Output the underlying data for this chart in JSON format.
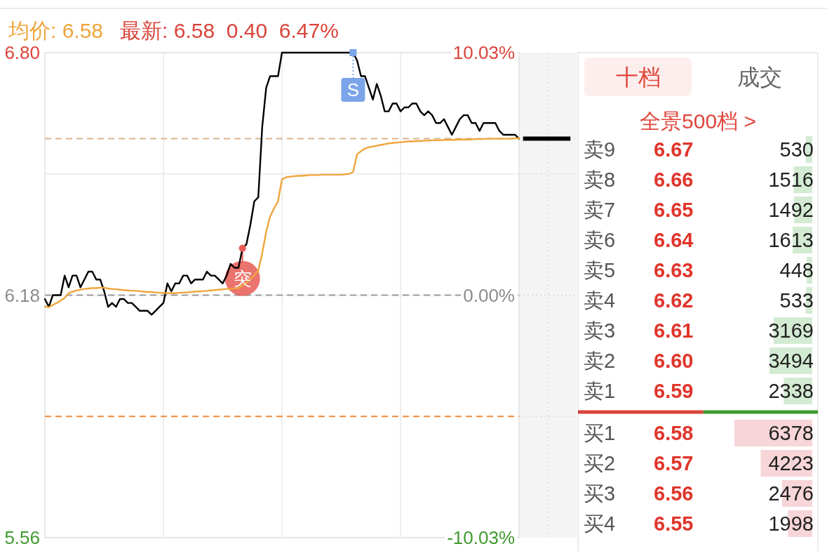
{
  "chart_data": [
    {
      "type": "line",
      "title": "均价: 6.58",
      "subtitle": "最新: 6.58  0.40  6.47%",
      "categories": [
        null,
        null,
        null,
        null,
        null,
        null,
        null,
        null,
        null,
        null,
        null,
        null,
        null,
        null,
        null,
        null,
        null,
        null,
        null,
        null,
        null,
        null,
        null,
        null,
        null,
        null,
        null,
        null,
        null,
        null,
        null,
        null,
        null,
        null,
        null,
        null,
        null,
        null,
        null,
        null,
        null,
        null,
        null,
        null,
        null,
        null,
        null,
        null,
        null,
        null,
        null,
        null,
        null,
        null,
        null,
        null,
        null,
        null,
        null,
        null,
        null,
        null,
        null,
        null,
        null,
        null,
        null,
        null,
        null,
        null,
        null,
        null,
        null,
        null,
        null,
        null,
        null,
        null,
        null,
        null,
        null,
        null,
        null,
        null,
        null,
        null,
        null,
        null,
        null,
        null,
        null,
        null,
        null,
        null,
        null,
        null,
        null,
        null,
        null,
        null,
        null,
        null,
        null,
        null,
        null,
        null,
        null,
        null,
        null,
        null,
        null,
        null,
        null,
        null,
        null,
        null,
        null,
        null,
        null,
        null,
        null,
        null,
        null,
        null,
        null,
        null,
        null,
        null,
        null,
        null,
        null,
        null,
        null,
        null
      ],
      "series": [
        {
          "color": "#000000",
          "values": [
            6.17,
            6.15,
            6.18,
            6.18,
            6.18,
            6.23,
            6.2,
            6.23,
            6.23,
            6.2,
            6.22,
            6.24,
            6.24,
            6.22,
            6.22,
            6.19,
            6.15,
            6.16,
            6.15,
            6.17,
            6.17,
            6.16,
            6.16,
            6.15,
            6.14,
            6.14,
            6.14,
            6.13,
            6.14,
            6.15,
            6.16,
            6.21,
            6.19,
            6.21,
            6.21,
            6.23,
            6.23,
            6.21,
            6.22,
            6.22,
            6.22,
            6.24,
            6.23,
            6.23,
            6.22,
            6.21,
            6.23,
            6.26,
            6.25,
            6.25,
            6.3,
            6.31,
            6.36,
            6.42,
            6.43,
            6.61,
            6.71,
            6.74,
            6.74,
            6.74,
            6.8,
            6.8,
            6.8,
            6.8,
            6.8,
            6.8,
            6.8,
            6.8,
            6.8,
            6.8,
            6.8,
            6.8,
            6.8,
            6.8,
            6.8,
            6.8,
            6.8,
            6.8,
            6.8,
            6.78,
            6.74,
            6.74,
            6.71,
            6.68,
            6.72,
            6.69,
            6.65,
            6.65,
            6.67,
            6.67,
            6.65,
            6.66,
            6.66,
            6.67,
            6.67,
            6.65,
            6.64,
            6.65,
            6.64,
            6.62,
            6.62,
            6.63,
            6.61,
            6.59,
            6.61,
            6.63,
            6.64,
            6.64,
            6.62,
            6.62,
            6.6,
            6.62,
            6.62,
            6.62,
            6.62,
            6.6,
            6.59,
            6.59,
            6.59,
            6.59,
            6.58,
            null,
            null,
            null,
            null,
            null,
            null,
            null,
            null,
            null,
            null,
            null,
            null,
            null
          ]
        },
        {
          "color": "#efa53c",
          "values": [
            6.151,
            6.149,
            6.155,
            6.16,
            6.166,
            6.173,
            6.185,
            6.189,
            6.192,
            6.194,
            6.196,
            6.197,
            6.198,
            6.198,
            6.199,
            6.199,
            6.197,
            6.196,
            6.195,
            6.194,
            6.193,
            6.192,
            6.191,
            6.191,
            6.19,
            6.189,
            6.188,
            6.188,
            6.187,
            6.186,
            6.186,
            6.185,
            6.185,
            6.185,
            6.186,
            6.187,
            6.187,
            6.188,
            6.189,
            6.19,
            6.19,
            6.191,
            6.192,
            6.193,
            6.194,
            6.195,
            6.196,
            6.196,
            6.197,
            6.198,
            6.205,
            6.211,
            6.221,
            6.231,
            6.243,
            6.287,
            6.342,
            6.381,
            6.402,
            6.42,
            6.476,
            6.481,
            6.483,
            6.484,
            6.485,
            6.485,
            6.486,
            6.487,
            6.487,
            6.487,
            6.488,
            6.488,
            6.488,
            6.488,
            6.488,
            6.488,
            6.489,
            6.49,
            6.495,
            6.54,
            6.548,
            6.555,
            6.558,
            6.56,
            6.562,
            6.564,
            6.566,
            6.568,
            6.569,
            6.57,
            6.571,
            6.572,
            6.573,
            6.573,
            6.574,
            6.574,
            6.575,
            6.575,
            6.576,
            6.576,
            6.576,
            6.577,
            6.577,
            6.577,
            6.577,
            6.578,
            6.578,
            6.578,
            6.578,
            6.579,
            6.579,
            6.579,
            6.58,
            6.58,
            6.58,
            6.58,
            6.58,
            6.58,
            6.58,
            6.581,
            6.581,
            null,
            null,
            null,
            null,
            null,
            null,
            null,
            null,
            null,
            null,
            null,
            null,
            null
          ]
        },
        {
          "color": "#000000",
          "values": [
            null,
            null,
            null,
            null,
            null,
            null,
            null,
            null,
            null,
            null,
            null,
            null,
            null,
            null,
            null,
            null,
            null,
            null,
            null,
            null,
            null,
            null,
            null,
            null,
            null,
            null,
            null,
            null,
            null,
            null,
            null,
            null,
            null,
            null,
            null,
            null,
            null,
            null,
            null,
            null,
            null,
            null,
            null,
            null,
            null,
            null,
            null,
            null,
            null,
            null,
            null,
            null,
            null,
            null,
            null,
            null,
            null,
            null,
            null,
            null,
            null,
            null,
            null,
            null,
            null,
            null,
            null,
            null,
            null,
            null,
            null,
            null,
            null,
            null,
            null,
            null,
            null,
            null,
            null,
            null,
            null,
            null,
            null,
            null,
            null,
            null,
            null,
            null,
            null,
            null,
            null,
            null,
            null,
            null,
            null,
            null,
            null,
            null,
            null,
            null,
            null,
            null,
            null,
            null,
            null,
            null,
            null,
            null,
            null,
            null,
            null,
            null,
            null,
            null,
            null,
            null,
            null,
            null,
            null,
            null,
            null,
            6.58,
            6.58,
            6.58,
            6.58,
            6.58,
            6.58,
            6.58,
            6.58,
            6.58,
            6.58,
            6.58,
            6.58,
            6.58
          ]
        },
        {
          "type": "scatter",
          "marker": "circle",
          "color": "#e85a54",
          "values": [
            null,
            null,
            null,
            null,
            null,
            null,
            null,
            null,
            null,
            null,
            null,
            null,
            null,
            null,
            null,
            null,
            null,
            null,
            null,
            null,
            null,
            null,
            null,
            null,
            null,
            null,
            null,
            null,
            null,
            null,
            null,
            null,
            null,
            null,
            null,
            null,
            null,
            null,
            null,
            null,
            null,
            null,
            null,
            null,
            null,
            null,
            null,
            null,
            null,
            null,
            6.3,
            null,
            null,
            null,
            null,
            null,
            null,
            null,
            null,
            null,
            null,
            null,
            null,
            null,
            null,
            null,
            null,
            null,
            null,
            null,
            null,
            null,
            null,
            null,
            null,
            null,
            null,
            null,
            null,
            null,
            null,
            null,
            null,
            null,
            null,
            null,
            null,
            null,
            null,
            null,
            null,
            null,
            null,
            null,
            null,
            null,
            null,
            null,
            null,
            null,
            null,
            null,
            null,
            null,
            null,
            null,
            null,
            null,
            null,
            null,
            null,
            null,
            null,
            null,
            null,
            null,
            null,
            null,
            null,
            null,
            null,
            null,
            null,
            null,
            null,
            null,
            null,
            null,
            null,
            null,
            null,
            null,
            null,
            null
          ],
          "value_labels": [
            null,
            null,
            null,
            null,
            null,
            null,
            null,
            null,
            null,
            null,
            null,
            null,
            null,
            null,
            null,
            null,
            null,
            null,
            null,
            null,
            null,
            null,
            null,
            null,
            null,
            null,
            null,
            null,
            null,
            null,
            null,
            null,
            null,
            null,
            null,
            null,
            null,
            null,
            null,
            null,
            null,
            null,
            null,
            null,
            null,
            null,
            null,
            null,
            null,
            null,
            "突",
            null,
            null,
            null,
            null,
            null,
            null,
            null,
            null,
            null,
            null,
            null,
            null,
            null,
            null,
            null,
            null,
            null,
            null,
            null,
            null,
            null,
            null,
            null,
            null,
            null,
            null,
            null,
            null,
            null,
            null,
            null,
            null,
            null,
            null,
            null,
            null,
            null,
            null,
            null,
            null,
            null,
            null,
            null,
            null,
            null,
            null,
            null,
            null,
            null,
            null,
            null,
            null,
            null,
            null,
            null,
            null,
            null,
            null,
            null,
            null,
            null,
            null,
            null,
            null,
            null,
            null,
            null,
            null,
            null,
            null,
            null,
            null,
            null,
            null,
            null,
            null,
            null,
            null,
            null,
            null,
            null,
            null,
            null
          ]
        },
        {
          "type": "scatter",
          "marker": "square",
          "color": "#7ba5e8",
          "values": [
            null,
            null,
            null,
            null,
            null,
            null,
            null,
            null,
            null,
            null,
            null,
            null,
            null,
            null,
            null,
            null,
            null,
            null,
            null,
            null,
            null,
            null,
            null,
            null,
            null,
            null,
            null,
            null,
            null,
            null,
            null,
            null,
            null,
            null,
            null,
            null,
            null,
            null,
            null,
            null,
            null,
            null,
            null,
            null,
            null,
            null,
            null,
            null,
            null,
            null,
            null,
            null,
            null,
            null,
            null,
            null,
            null,
            null,
            null,
            null,
            null,
            null,
            null,
            null,
            null,
            null,
            null,
            null,
            null,
            null,
            null,
            null,
            null,
            null,
            null,
            null,
            null,
            null,
            6.8,
            null,
            null,
            null,
            null,
            null,
            null,
            null,
            null,
            null,
            null,
            null,
            null,
            null,
            null,
            null,
            null,
            null,
            null,
            null,
            null,
            null,
            null,
            null,
            null,
            null,
            null,
            null,
            null,
            null,
            null,
            null,
            null,
            null,
            null,
            null,
            null,
            null,
            null,
            null,
            null,
            null,
            null,
            null,
            null,
            null,
            null,
            null,
            null,
            null,
            null,
            null,
            null,
            null,
            null,
            null
          ],
          "value_labels": [
            null,
            null,
            null,
            null,
            null,
            null,
            null,
            null,
            null,
            null,
            null,
            null,
            null,
            null,
            null,
            null,
            null,
            null,
            null,
            null,
            null,
            null,
            null,
            null,
            null,
            null,
            null,
            null,
            null,
            null,
            null,
            null,
            null,
            null,
            null,
            null,
            null,
            null,
            null,
            null,
            null,
            null,
            null,
            null,
            null,
            null,
            null,
            null,
            null,
            null,
            null,
            null,
            null,
            null,
            null,
            null,
            null,
            null,
            null,
            null,
            null,
            null,
            null,
            null,
            null,
            null,
            null,
            null,
            null,
            null,
            null,
            null,
            null,
            null,
            null,
            null,
            null,
            null,
            "S",
            null,
            null,
            null,
            null,
            null,
            null,
            null,
            null,
            null,
            null,
            null,
            null,
            null,
            null,
            null,
            null,
            null,
            null,
            null,
            null,
            null,
            null,
            null,
            null,
            null,
            null,
            null,
            null,
            null,
            null,
            null,
            null,
            null,
            null,
            null,
            null,
            null,
            null,
            null,
            null,
            null,
            null,
            null,
            null,
            null,
            null,
            null,
            null,
            null,
            null,
            null,
            null,
            null,
            null,
            null
          ]
        }
      ],
      "ylim": [
        5.56,
        6.8
      ],
      "yticks": [
        {
          "value": 6.8,
          "label": "6.80"
        },
        {
          "value": 6.49,
          "label": null
        },
        6.18,
        5.56
      ],
      "y2lim": [
        -10.03,
        10.03
      ],
      "y2ticks": [
        {
          "value": 10.03,
          "label": "10.03%"
        },
        {
          "value": 0,
          "label": "0.00%"
        },
        {
          "value": -10.03,
          "label": "-10.03%"
        }
      ],
      "ref_lines": [
        {
          "axis": "y",
          "value": 6.58,
          "color": "#d9b48e",
          "line_style": "dashed"
        },
        {
          "axis": "y",
          "value": 6.18,
          "color": "#999999",
          "line_style": "dashed"
        },
        {
          "axis": "y",
          "value": 5.87,
          "color": "#ee8a3c",
          "line_style": "dashed"
        }
      ],
      "grid": true,
      "tick_labels": "y"
    },
    {
      "type": "bar",
      "orientation": "horizontal",
      "title": "十档",
      "annotations": [
        "成交",
        "全景500档 >"
      ],
      "categories": [
        "卖9",
        "卖8",
        "卖7",
        "卖6",
        "卖5",
        "卖4",
        "卖3",
        "卖2",
        "卖1",
        "买1",
        "买2",
        "买3",
        "买4"
      ],
      "y2_categories": [
        "6.67",
        "6.66",
        "6.65",
        "6.64",
        "6.63",
        "6.62",
        "6.61",
        "6.60",
        "6.59",
        "6.58",
        "6.57",
        "6.56",
        "6.55"
      ],
      "values": [
        530,
        1516,
        1492,
        1613,
        448,
        533,
        3169,
        3494,
        2338,
        6378,
        4223,
        2476,
        1998
      ],
      "colors": [
        "#d3ebd3",
        "#d3ebd3",
        "#d3ebd3",
        "#d3ebd3",
        "#d3ebd3",
        "#d3ebd3",
        "#d3ebd3",
        "#d3ebd3",
        "#d3ebd3",
        "#f7d5d8",
        "#f7d5d8",
        "#f7d5d8",
        "#f7d5d8"
      ],
      "data_labels": true
    }
  ]
}
